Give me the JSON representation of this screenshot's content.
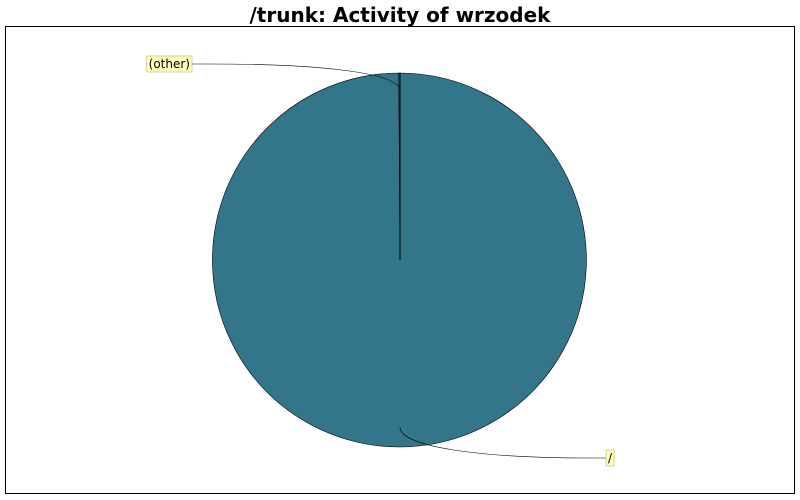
{
  "chart_data": {
    "type": "pie",
    "title": "/trunk: Activity of wrzodek",
    "slices": [
      {
        "label": "/",
        "value": 99.9,
        "color": "#33768a"
      },
      {
        "label": "(other)",
        "value": 0.1,
        "color": "#33768a"
      }
    ],
    "label_box_color": "#ffffc0",
    "label_box_border": "#c8c880",
    "grid": false,
    "legend": "none"
  }
}
